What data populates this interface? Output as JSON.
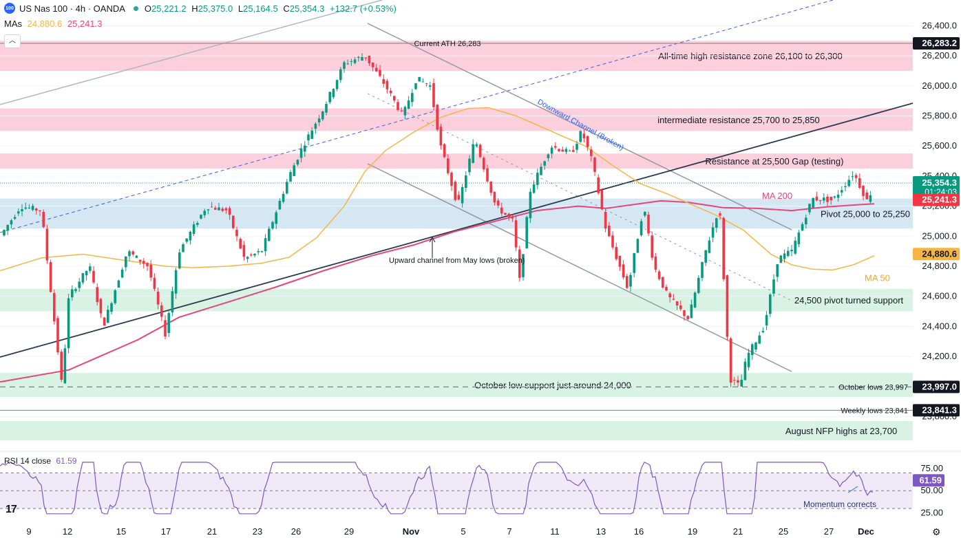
{
  "header": {
    "logo_text": "100",
    "symbol": "US Nas 100 · 4h · OANDA",
    "o_label": "O",
    "o_value": "25,221.2",
    "h_label": "H",
    "h_value": "25,375.0",
    "l_label": "L",
    "l_value": "25,164.5",
    "c_label": "C",
    "c_value": "25,354.3",
    "change": "+132.7 (+0.53%)"
  },
  "mas_header": {
    "label": "MAs",
    "ma50": "24,880.6",
    "ma200": "25,241.3"
  },
  "rsi_header": {
    "label": "RSI 14 close",
    "value": "61.59"
  },
  "brand": {
    "logo": "17"
  },
  "colors": {
    "up": "#089981",
    "down": "#f23645",
    "ma50": "#f5b642",
    "ma200": "#e8457c",
    "resistance_zone": "#fccfdc",
    "support_zone": "#d8f3e4",
    "pivot_zone": "#d4e7f3"
  },
  "chart_data": {
    "type": "candlestick",
    "ylim": [
      23550,
      26480
    ],
    "x_tick_labels": [
      "9",
      "12",
      "15",
      "17",
      "21",
      "23",
      "26",
      "29",
      "Nov",
      "5",
      "7",
      "11",
      "13",
      "16",
      "19",
      "21",
      "25",
      "27",
      "Dec"
    ],
    "y_tick_labels": [
      "26,400.0",
      "26,200.0",
      "26,000.0",
      "25,800.0",
      "25,600.0",
      "25,400.0",
      "25,200.0",
      "25,000.0",
      "24,800.0",
      "24,600.0",
      "24,400.0",
      "24,200.0",
      "24,000.0",
      "23,800.0"
    ],
    "y_ticks": [
      26400,
      26200,
      26000,
      25800,
      25600,
      25400,
      25200,
      25000,
      24800,
      24600,
      24400,
      24200,
      24000,
      23800
    ],
    "zones": [
      {
        "from": 26100,
        "to": 26300,
        "kind": "resistance",
        "label": "All-time high resistance zone 26,100 to 26,300"
      },
      {
        "from": 25700,
        "to": 25850,
        "kind": "resistance",
        "label": "intermediate resistance 25,700 to 25,850"
      },
      {
        "from": 25450,
        "to": 25550,
        "kind": "resistance",
        "label": "Resistance at 25,500 Gap (testing)"
      },
      {
        "from": 25050,
        "to": 25250,
        "kind": "pivot",
        "label": "Pivot 25,000 to 25,250"
      },
      {
        "from": 24500,
        "to": 24650,
        "kind": "support",
        "label": "24,500 pivot turned support"
      },
      {
        "from": 23930,
        "to": 24090,
        "kind": "support",
        "label": "October low support just around 24,000"
      },
      {
        "from": 23640,
        "to": 23770,
        "kind": "support",
        "label": "August NFP highs at 23,700"
      }
    ],
    "levels": [
      {
        "value": 26283,
        "label": "Current ATH 26,283",
        "tag": "26,283.2"
      },
      {
        "value": 23997,
        "label": "October lows 23,997",
        "tag": "23,997.0"
      },
      {
        "value": 23841,
        "label": "Weekly lows 23,841",
        "tag": "23,841.3"
      }
    ],
    "price_tags": {
      "last": "25,354.3",
      "timer": "01:24:03",
      "ma200": "25,241.3",
      "ma50": "24,880.6",
      "last_value": 25354,
      "ma200_value": 25241,
      "ma50_value": 24881
    },
    "annotations": {
      "ma200": "MA 200",
      "ma50": "MA 50",
      "down_channel": "Downward Channel (Broken)",
      "up_channel": "Upward channel from May lows (broken)"
    },
    "series": [
      {
        "name": "MA 50",
        "values": [
          [
            0,
            24770
          ],
          [
            60,
            24855
          ],
          [
            120,
            24880
          ],
          [
            180,
            24840
          ],
          [
            240,
            24800
          ],
          [
            280,
            24790
          ],
          [
            330,
            24800
          ],
          [
            380,
            24820
          ],
          [
            420,
            24860
          ],
          [
            460,
            24990
          ],
          [
            500,
            25200
          ],
          [
            530,
            25430
          ],
          [
            560,
            25570
          ],
          [
            600,
            25690
          ],
          [
            640,
            25790
          ],
          [
            680,
            25850
          ],
          [
            710,
            25855
          ],
          [
            750,
            25800
          ],
          [
            800,
            25700
          ],
          [
            850,
            25600
          ],
          [
            890,
            25470
          ],
          [
            930,
            25350
          ],
          [
            970,
            25280
          ],
          [
            1000,
            25220
          ],
          [
            1040,
            25140
          ],
          [
            1080,
            25040
          ],
          [
            1120,
            24880
          ],
          [
            1150,
            24810
          ],
          [
            1180,
            24780
          ],
          [
            1210,
            24775
          ],
          [
            1240,
            24810
          ],
          [
            1270,
            24870
          ]
        ]
      },
      {
        "name": "MA 200",
        "values": [
          [
            0,
            24030
          ],
          [
            100,
            24110
          ],
          [
            200,
            24310
          ],
          [
            260,
            24460
          ],
          [
            330,
            24560
          ],
          [
            400,
            24660
          ],
          [
            470,
            24770
          ],
          [
            540,
            24870
          ],
          [
            600,
            24940
          ],
          [
            660,
            25030
          ],
          [
            720,
            25100
          ],
          [
            780,
            25170
          ],
          [
            840,
            25200
          ],
          [
            880,
            25185
          ],
          [
            920,
            25210
          ],
          [
            960,
            25235
          ],
          [
            1000,
            25225
          ],
          [
            1050,
            25190
          ],
          [
            1100,
            25185
          ],
          [
            1150,
            25170
          ],
          [
            1200,
            25195
          ],
          [
            1250,
            25210
          ],
          [
            1270,
            25215
          ]
        ]
      }
    ],
    "rsi": {
      "ylim": [
        20,
        85
      ],
      "tick_labels": [
        "75.00",
        "50.00",
        "25.00"
      ],
      "ticks": [
        75,
        50,
        25
      ],
      "overbought": 70,
      "middle": 50,
      "oversold": 30,
      "last": "61.59",
      "annotation": "Momentum corrects"
    }
  }
}
